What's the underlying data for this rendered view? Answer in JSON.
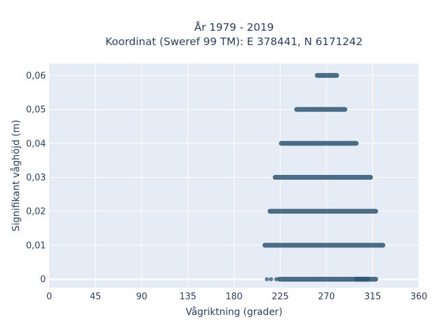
{
  "chart_data": {
    "type": "scatter",
    "title_line1": "År 1979 - 2019",
    "title_line2": "Koordinat (Sweref 99 TM): E 378441, N 6171242",
    "xlabel": "Vågriktning (grader)",
    "ylabel": "Signifikant våghöjd (m)",
    "xlim": [
      0,
      360
    ],
    "ylim": [
      -0.0025,
      0.0635
    ],
    "x_ticks": [
      0,
      45,
      90,
      135,
      180,
      225,
      270,
      315,
      360
    ],
    "x_tick_labels": [
      "0",
      "45",
      "90",
      "135",
      "180",
      "225",
      "270",
      "315",
      "360"
    ],
    "y_ticks": [
      0,
      0.01,
      0.02,
      0.03,
      0.04,
      0.05,
      0.06
    ],
    "y_tick_labels": [
      "0",
      "0,01",
      "0,02",
      "0,03",
      "0,04",
      "0,05",
      "0,06"
    ],
    "grid": true,
    "marker_color": "#2e5570",
    "background_color": "#e5ecf6",
    "series": [
      {
        "y": 0.06,
        "x_from": 261,
        "x_to": 280
      },
      {
        "y": 0.05,
        "x_from": 241,
        "x_to": 288
      },
      {
        "y": 0.04,
        "x_from": 226,
        "x_to": 299
      },
      {
        "y": 0.03,
        "x_from": 220,
        "x_to": 313
      },
      {
        "y": 0.02,
        "x_from": 215,
        "x_to": 318
      },
      {
        "y": 0.01,
        "x_from": 210,
        "x_to": 325
      },
      {
        "y": 0.0,
        "x_from": 224,
        "x_to": 310
      },
      {
        "y": 0.0,
        "x_from": 299,
        "x_to": 318
      },
      {
        "y": 0.0,
        "x_from": 212,
        "x_to": 212
      },
      {
        "y": 0.0,
        "x_from": 216,
        "x_to": 216
      },
      {
        "y": 0.0,
        "x_from": 221,
        "x_to": 221
      }
    ]
  }
}
